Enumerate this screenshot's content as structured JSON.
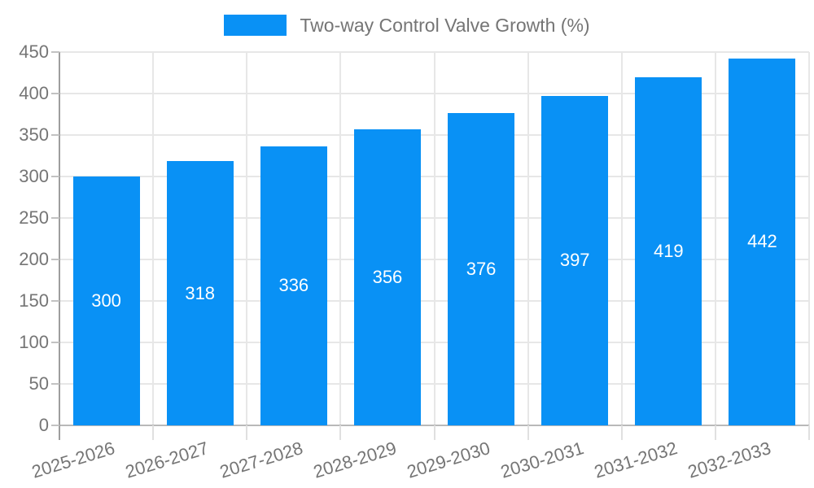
{
  "chart_data": {
    "type": "bar",
    "title": "Two-way Control Valve Growth (%)",
    "legend": {
      "position": "top",
      "label": "Two-way Control Valve Growth (%)"
    },
    "categories": [
      "2025-2026",
      "2026-2027",
      "2027-2028",
      "2028-2029",
      "2029-2030",
      "2030-2031",
      "2031-2032",
      "2032-2033"
    ],
    "series": [
      {
        "name": "Two-way Control Valve Growth (%)",
        "values": [
          300,
          318,
          336,
          356,
          376,
          397,
          419,
          442
        ]
      }
    ],
    "value_labels": [
      "300",
      "318",
      "336",
      "356",
      "376",
      "397",
      "419",
      "442"
    ],
    "xlabel": "",
    "ylabel": "",
    "ylim": [
      0,
      450
    ],
    "ytick_step": 50,
    "ytick_labels": [
      "0",
      "50",
      "100",
      "150",
      "200",
      "250",
      "300",
      "350",
      "400",
      "450"
    ],
    "grid": true,
    "x_label_rotation_deg": -17,
    "colors": {
      "bar": "#0991f5",
      "value_label": "#ffffff",
      "axis_text": "#757575",
      "legend_text": "#757575",
      "gridline": "#e7e7e7",
      "y_axis_line": "#9e9e9e",
      "x_axis_line": "#b9b9b9",
      "y_tick": "#c2c2c2",
      "x_tick": "#e0e0e0",
      "background": "#ffffff"
    }
  }
}
